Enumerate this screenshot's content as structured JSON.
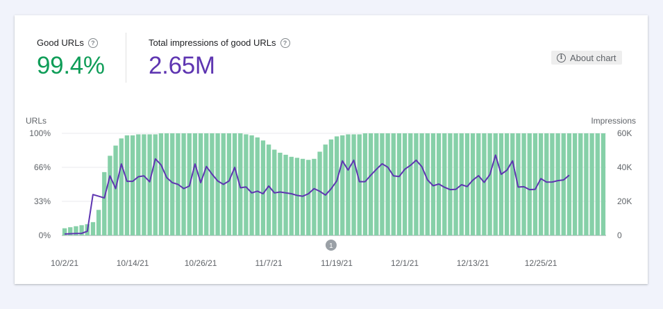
{
  "metrics": {
    "good_urls_label": "Good URLs",
    "good_urls_value": "99.4%",
    "impressions_label": "Total impressions of good URLs",
    "impressions_value": "2.65M",
    "help_glyph": "?"
  },
  "about_button": {
    "label": "About chart",
    "icon": "info-icon",
    "glyph": "i"
  },
  "annotation": {
    "label": "1",
    "date_index": 47
  },
  "colors": {
    "bar": "#86d0a8",
    "line": "#5e35b1",
    "good": "#0f9d58",
    "grid": "#e8eaed"
  },
  "chart_data": {
    "type": "bar",
    "left_axis_title": "URLs",
    "right_axis_title": "Impressions",
    "left_ticks": [
      "100%",
      "66%",
      "33%",
      "0%"
    ],
    "right_ticks": [
      "60K",
      "40K",
      "20K",
      "0"
    ],
    "ylim_left": [
      0,
      100
    ],
    "ylim_right": [
      0,
      60000
    ],
    "x_tick_labels": [
      "10/2/21",
      "10/14/21",
      "10/26/21",
      "11/7/21",
      "11/19/21",
      "12/1/21",
      "12/13/21",
      "12/25/21"
    ],
    "x_tick_indices": [
      0,
      12,
      24,
      36,
      48,
      60,
      72,
      84
    ],
    "grid": true,
    "series": [
      {
        "axis": "left",
        "values": [
          7,
          8,
          9,
          10,
          11,
          13,
          25,
          62,
          78,
          88,
          95,
          98,
          98,
          99,
          99,
          99,
          99,
          100,
          100,
          100,
          100,
          100,
          100,
          100,
          100,
          100,
          100,
          100,
          100,
          100,
          100,
          100,
          99,
          98,
          96,
          93,
          89,
          84,
          81,
          79,
          77,
          76,
          75,
          74,
          75,
          82,
          89,
          94,
          97,
          98,
          99,
          99,
          99,
          100,
          100,
          100,
          100,
          100,
          100,
          100,
          100,
          100,
          100,
          100,
          100,
          100,
          100,
          100,
          100,
          100,
          100,
          100,
          100,
          100,
          100,
          100,
          100,
          100,
          100,
          100,
          100,
          100,
          100,
          100,
          100,
          100,
          100,
          100,
          100,
          100,
          100,
          100,
          100,
          100,
          100,
          100
        ]
      },
      {
        "axis": "right",
        "values": [
          800,
          1000,
          1100,
          1200,
          2400,
          24000,
          23000,
          22000,
          35000,
          27500,
          42000,
          31800,
          31800,
          34500,
          35000,
          31500,
          45000,
          41500,
          34000,
          31000,
          30000,
          27500,
          29000,
          42000,
          31000,
          40500,
          36000,
          32000,
          30000,
          32000,
          40000,
          28000,
          28500,
          25000,
          26000,
          24500,
          29000,
          25000,
          25500,
          25000,
          24500,
          23500,
          23000,
          24500,
          27500,
          25900,
          23700,
          27400,
          32000,
          43800,
          38400,
          44200,
          31600,
          31600,
          35400,
          38900,
          42100,
          40100,
          35000,
          34600,
          38900,
          41200,
          44200,
          40400,
          32600,
          29200,
          30200,
          28300,
          26900,
          27100,
          29800,
          28700,
          32500,
          35100,
          31200,
          35700,
          47200,
          35900,
          38300,
          43800,
          28400,
          28600,
          26900,
          27100,
          33400,
          31300,
          31400,
          32200,
          32600,
          35400
        ]
      }
    ]
  }
}
